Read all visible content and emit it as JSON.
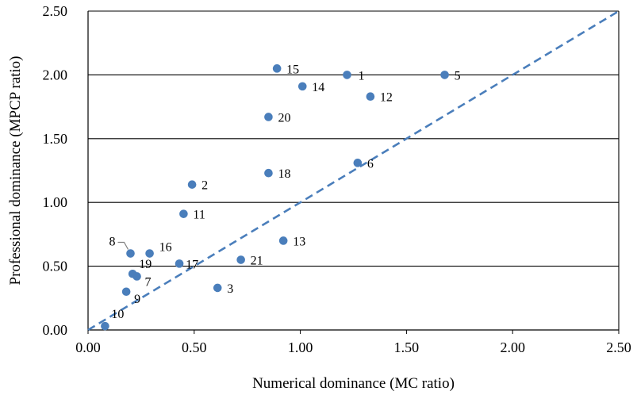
{
  "chart_data": {
    "type": "scatter",
    "title": "",
    "xlabel": "Numerical dominance (MC ratio)",
    "ylabel": "Professional dominance (MPCP ratio)",
    "xlim": [
      0,
      2.5
    ],
    "ylim": [
      0,
      2.5
    ],
    "x_ticks": [
      "0.00",
      "0.50",
      "1.00",
      "1.50",
      "2.00",
      "2.50"
    ],
    "y_ticks": [
      "0.00",
      "0.50",
      "1.00",
      "1.50",
      "2.00",
      "2.50"
    ],
    "grid": "horizontal",
    "legend": "none",
    "marker_color": "#4a7ebb",
    "reference_line": {
      "style": "dashed",
      "color": "#4a7ebb",
      "from": [
        0,
        0
      ],
      "to": [
        2.5,
        2.5
      ]
    },
    "points": [
      {
        "label": "1",
        "x": 1.22,
        "y": 2.0
      },
      {
        "label": "2",
        "x": 0.49,
        "y": 1.14
      },
      {
        "label": "3",
        "x": 0.61,
        "y": 0.33
      },
      {
        "label": "5",
        "x": 1.68,
        "y": 2.0
      },
      {
        "label": "6",
        "x": 1.27,
        "y": 1.31
      },
      {
        "label": "7",
        "x": 0.23,
        "y": 0.42
      },
      {
        "label": "8",
        "x": 0.2,
        "y": 0.6
      },
      {
        "label": "9",
        "x": 0.18,
        "y": 0.3
      },
      {
        "label": "10",
        "x": 0.08,
        "y": 0.03
      },
      {
        "label": "11",
        "x": 0.45,
        "y": 0.91
      },
      {
        "label": "12",
        "x": 1.33,
        "y": 1.83
      },
      {
        "label": "13",
        "x": 0.92,
        "y": 0.7
      },
      {
        "label": "14",
        "x": 1.01,
        "y": 1.91
      },
      {
        "label": "15",
        "x": 0.89,
        "y": 2.05
      },
      {
        "label": "16",
        "x": 0.29,
        "y": 0.6
      },
      {
        "label": "17",
        "x": 0.43,
        "y": 0.52
      },
      {
        "label": "18",
        "x": 0.85,
        "y": 1.23
      },
      {
        "label": "19",
        "x": 0.21,
        "y": 0.44
      },
      {
        "label": "20",
        "x": 0.85,
        "y": 1.67
      },
      {
        "label": "21",
        "x": 0.72,
        "y": 0.55
      }
    ]
  }
}
